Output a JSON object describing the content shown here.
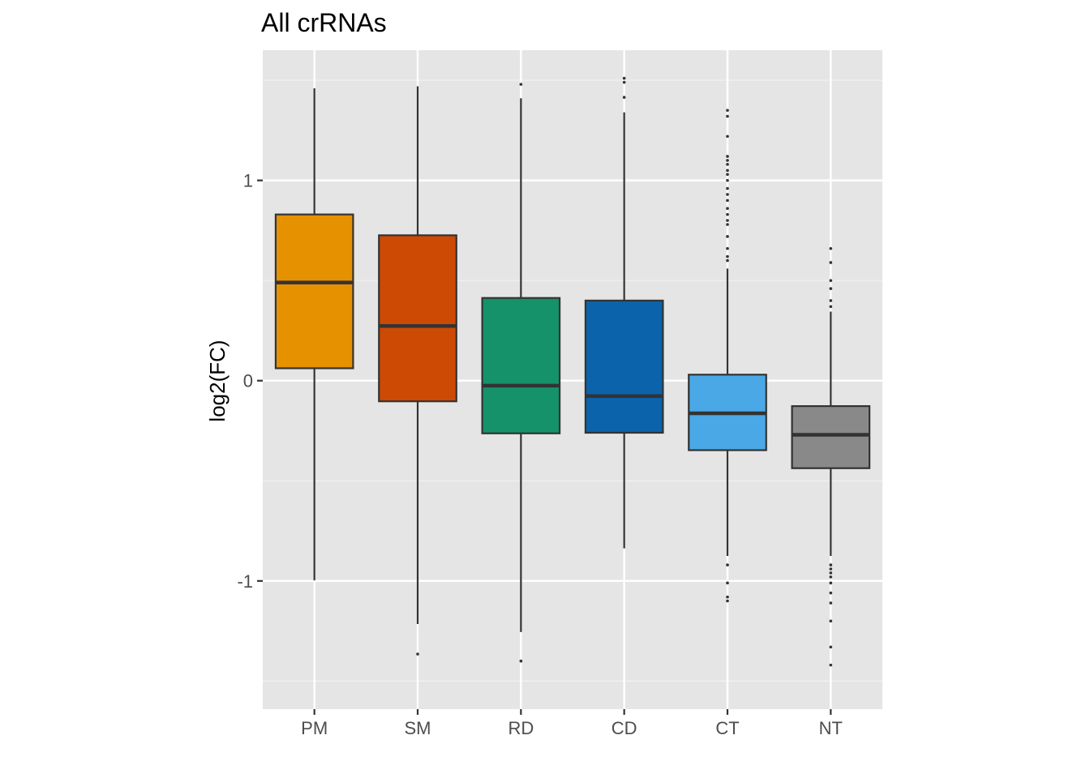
{
  "chart_data": {
    "type": "box",
    "title": "All crRNAs",
    "xlabel": "",
    "ylabel": "log2(FC)",
    "ylim": [
      -1.64,
      1.65
    ],
    "yticks": [
      -1,
      0,
      1
    ],
    "ytick_labels": [
      "-1",
      "0",
      "1"
    ],
    "grid": true,
    "legend": "none",
    "categories": [
      "PM",
      "SM",
      "RD",
      "CD",
      "CT",
      "NT"
    ],
    "colors": [
      "#E69100",
      "#CC4A04",
      "#15926A",
      "#0A63AB",
      "#4AA8E6",
      "#898989"
    ],
    "boxes": [
      {
        "category": "PM",
        "min": -0.997,
        "q1": 0.062,
        "median": 0.49,
        "q3": 0.83,
        "max": 1.46,
        "outliers": []
      },
      {
        "category": "SM",
        "min": -1.215,
        "q1": -0.103,
        "median": 0.273,
        "q3": 0.726,
        "max": 1.47,
        "outliers": [
          -1.365
        ]
      },
      {
        "category": "RD",
        "min": -1.255,
        "q1": -0.263,
        "median": -0.025,
        "q3": 0.413,
        "max": 1.41,
        "outliers": [
          -1.4,
          1.48
        ]
      },
      {
        "category": "CD",
        "min": -0.837,
        "q1": -0.26,
        "median": -0.077,
        "q3": 0.4,
        "max": 1.34,
        "outliers": [
          1.415,
          1.49,
          1.51
        ]
      },
      {
        "category": "CT",
        "min": -0.875,
        "q1": -0.347,
        "median": -0.163,
        "q3": 0.03,
        "max": 0.56,
        "outliers": [
          -1.1,
          -1.08,
          -1.01,
          -0.92,
          0.6,
          0.62,
          0.66,
          0.72,
          0.78,
          0.8,
          0.83,
          0.86,
          0.9,
          0.93,
          0.96,
          1.0,
          1.03,
          1.05,
          1.08,
          1.1,
          1.12,
          1.22,
          1.32,
          1.35
        ]
      },
      {
        "category": "NT",
        "min": -0.875,
        "q1": -0.437,
        "median": -0.27,
        "q3": -0.127,
        "max": 0.345,
        "outliers": [
          -1.42,
          -1.33,
          -1.2,
          -1.11,
          -1.06,
          -1.01,
          -0.98,
          -0.96,
          -0.94,
          -0.92,
          0.37,
          0.4,
          0.46,
          0.5,
          0.59,
          0.66
        ]
      }
    ]
  }
}
